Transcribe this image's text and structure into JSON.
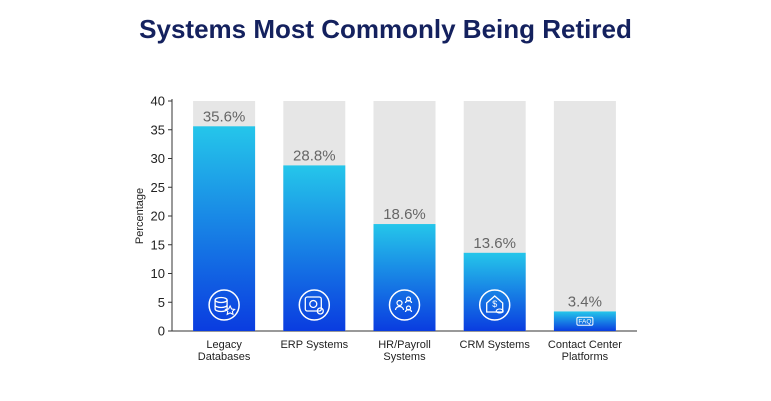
{
  "chart_data": {
    "type": "bar",
    "title": "Systems Most Commonly Being Retired",
    "ylabel": "Percentage",
    "xlabel": "",
    "ylim": [
      0,
      40
    ],
    "yticks": [
      0,
      5,
      10,
      15,
      20,
      25,
      30,
      35,
      40
    ],
    "categories": [
      [
        "Legacy",
        "Databases"
      ],
      [
        "ERP Systems"
      ],
      [
        "HR/Payroll",
        "Systems"
      ],
      [
        "CRM Systems"
      ],
      [
        "Contact Center",
        "Platforms"
      ]
    ],
    "values": [
      35.6,
      28.8,
      18.6,
      13.6,
      3.4
    ],
    "data_labels": [
      "35.6%",
      "28.8%",
      "18.6%",
      "13.6%",
      "3.4%"
    ],
    "icons": [
      "database-star-icon",
      "erp-gear-icon",
      "hr-people-icon",
      "crm-dollar-icon",
      "faq-icon"
    ],
    "grid": false,
    "colors": {
      "bar_top": "#25c6ea",
      "bar_bottom": "#0a3ce0",
      "track": "#e6e6e6",
      "title": "#14215e"
    }
  }
}
